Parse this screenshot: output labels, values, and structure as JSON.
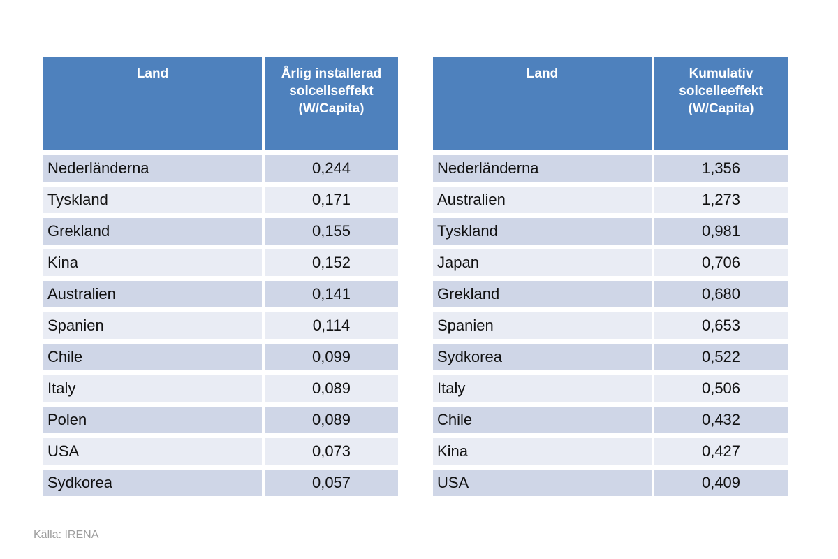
{
  "colors": {
    "header_bg": "#4E81BD",
    "header_text": "#FFFFFF",
    "row_stripe_dark": "#CFD6E7",
    "row_stripe_light": "#E9ECF4",
    "body_text": "#111111",
    "source_text": "#9E9E9E"
  },
  "tables": [
    {
      "header": {
        "land": "Land",
        "value": "Årlig installerad solcellseffekt (W/Capita)"
      },
      "rows": [
        {
          "land": "Nederländerna",
          "value": "0,244"
        },
        {
          "land": "Tyskland",
          "value": "0,171"
        },
        {
          "land": "Grekland",
          "value": "0,155"
        },
        {
          "land": "Kina",
          "value": "0,152"
        },
        {
          "land": "Australien",
          "value": "0,141"
        },
        {
          "land": "Spanien",
          "value": "0,114"
        },
        {
          "land": "Chile",
          "value": "0,099"
        },
        {
          "land": "Italy",
          "value": "0,089"
        },
        {
          "land": "Polen",
          "value": "0,089"
        },
        {
          "land": "USA",
          "value": "0,073"
        },
        {
          "land": "Sydkorea",
          "value": "0,057"
        }
      ]
    },
    {
      "header": {
        "land": "Land",
        "value": "Kumulativ solcelleeffekt (W/Capita)"
      },
      "rows": [
        {
          "land": "Nederländerna",
          "value": "1,356"
        },
        {
          "land": "Australien",
          "value": "1,273"
        },
        {
          "land": "Tyskland",
          "value": "0,981"
        },
        {
          "land": "Japan",
          "value": "0,706"
        },
        {
          "land": "Grekland",
          "value": "0,680"
        },
        {
          "land": "Spanien",
          "value": "0,653"
        },
        {
          "land": "Sydkorea",
          "value": "0,522"
        },
        {
          "land": "Italy",
          "value": "0,506"
        },
        {
          "land": "Chile",
          "value": "0,432"
        },
        {
          "land": "Kina",
          "value": "0,427"
        },
        {
          "land": "USA",
          "value": "0,409"
        }
      ]
    }
  ],
  "source_note": "Källa: IRENA",
  "chart_data": [
    {
      "type": "table",
      "title": "Årlig installerad solcellseffekt (W/Capita)",
      "columns": [
        "Land",
        "Årlig installerad solcellseffekt (W/Capita)"
      ],
      "categories": [
        "Nederländerna",
        "Tyskland",
        "Grekland",
        "Kina",
        "Australien",
        "Spanien",
        "Chile",
        "Italy",
        "Polen",
        "USA",
        "Sydkorea"
      ],
      "values": [
        0.244,
        0.171,
        0.155,
        0.152,
        0.141,
        0.114,
        0.099,
        0.089,
        0.089,
        0.073,
        0.057
      ],
      "decimal_separator": ",",
      "source": "Källa: IRENA"
    },
    {
      "type": "table",
      "title": "Kumulativ solcelleeffekt (W/Capita)",
      "columns": [
        "Land",
        "Kumulativ solcelleeffekt (W/Capita)"
      ],
      "categories": [
        "Nederländerna",
        "Australien",
        "Tyskland",
        "Japan",
        "Grekland",
        "Spanien",
        "Sydkorea",
        "Italy",
        "Chile",
        "Kina",
        "USA"
      ],
      "values": [
        1.356,
        1.273,
        0.981,
        0.706,
        0.68,
        0.653,
        0.522,
        0.506,
        0.432,
        0.427,
        0.409
      ],
      "decimal_separator": ",",
      "source": "Källa: IRENA"
    }
  ]
}
